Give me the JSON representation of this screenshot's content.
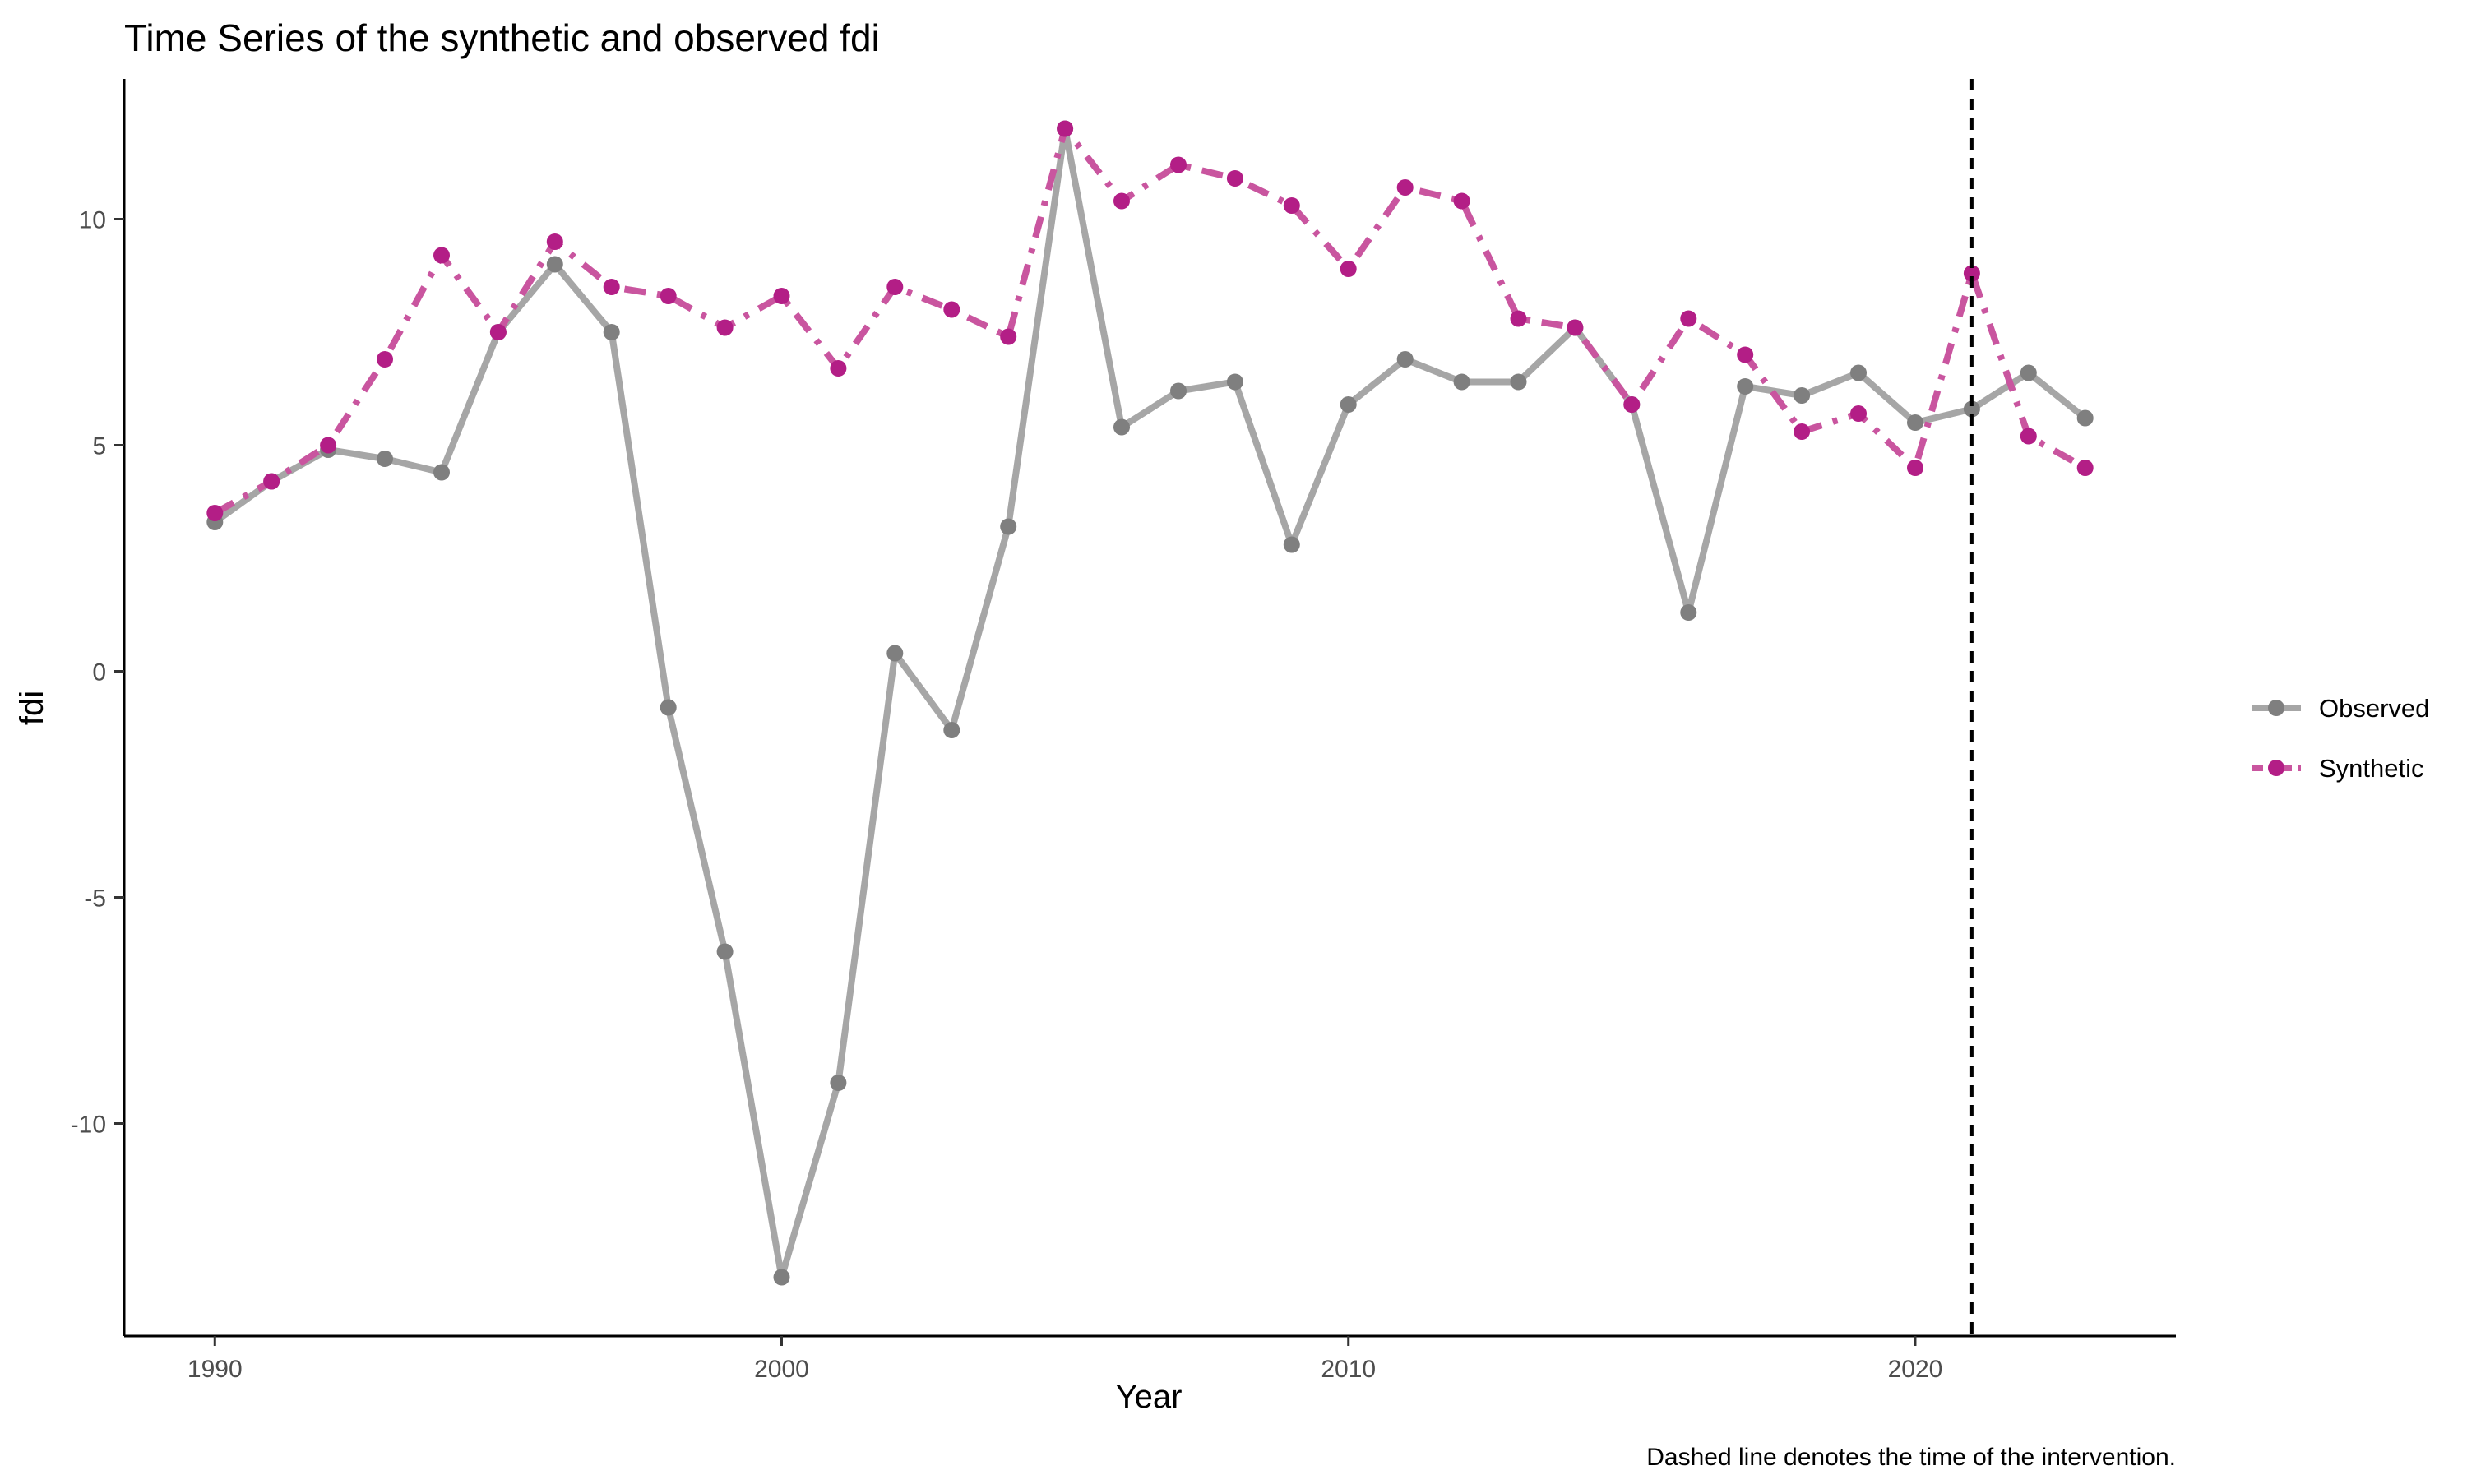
{
  "chart_data": {
    "type": "line",
    "title": "Time Series of the synthetic and observed fdi",
    "xlabel": "Year",
    "ylabel": "fdi",
    "caption": "Dashed line denotes the time of the intervention.",
    "xlim": [
      1988.4,
      2024.6
    ],
    "ylim": [
      -14.7,
      13.1
    ],
    "x_ticks": [
      1990,
      2000,
      2010,
      2020
    ],
    "y_ticks": [
      -10,
      -5,
      0,
      5,
      10
    ],
    "x_tick_labels": [
      "1990",
      "2000",
      "2010",
      "2020"
    ],
    "y_tick_labels": [
      "-10",
      "-5",
      "0",
      "5",
      "10"
    ],
    "intervention_x": 2021,
    "grid": false,
    "legend_position": "right",
    "x": [
      1990,
      1991,
      1992,
      1993,
      1994,
      1995,
      1996,
      1997,
      1998,
      1999,
      2000,
      2001,
      2002,
      2003,
      2004,
      2005,
      2006,
      2007,
      2008,
      2009,
      2010,
      2011,
      2012,
      2013,
      2014,
      2015,
      2016,
      2017,
      2018,
      2019,
      2020,
      2021,
      2022,
      2023
    ],
    "series": [
      {
        "name": "Observed",
        "color": "#7f7f7f",
        "line_color": "#a6a6a6",
        "line_style": "solid",
        "values": [
          3.3,
          4.2,
          4.9,
          4.7,
          4.4,
          7.5,
          9.0,
          7.5,
          -0.8,
          -6.2,
          -13.4,
          -9.1,
          0.4,
          -1.3,
          3.2,
          12.0,
          5.4,
          6.2,
          6.4,
          2.8,
          5.9,
          6.9,
          6.4,
          6.4,
          7.6,
          5.9,
          1.3,
          6.3,
          6.1,
          6.6,
          5.5,
          5.8,
          6.6,
          5.6
        ]
      },
      {
        "name": "Synthetic",
        "color": "#b31e86",
        "line_color": "#c9559f",
        "line_style": "dashdot",
        "values": [
          3.5,
          4.2,
          5.0,
          6.9,
          9.2,
          7.5,
          9.5,
          8.5,
          8.3,
          7.6,
          8.3,
          6.7,
          8.5,
          8.0,
          7.4,
          12.0,
          10.4,
          11.2,
          10.9,
          10.3,
          8.9,
          10.7,
          10.4,
          7.8,
          7.6,
          5.9,
          7.8,
          7.0,
          5.3,
          5.7,
          4.5,
          8.8,
          5.2,
          4.5
        ]
      }
    ]
  }
}
